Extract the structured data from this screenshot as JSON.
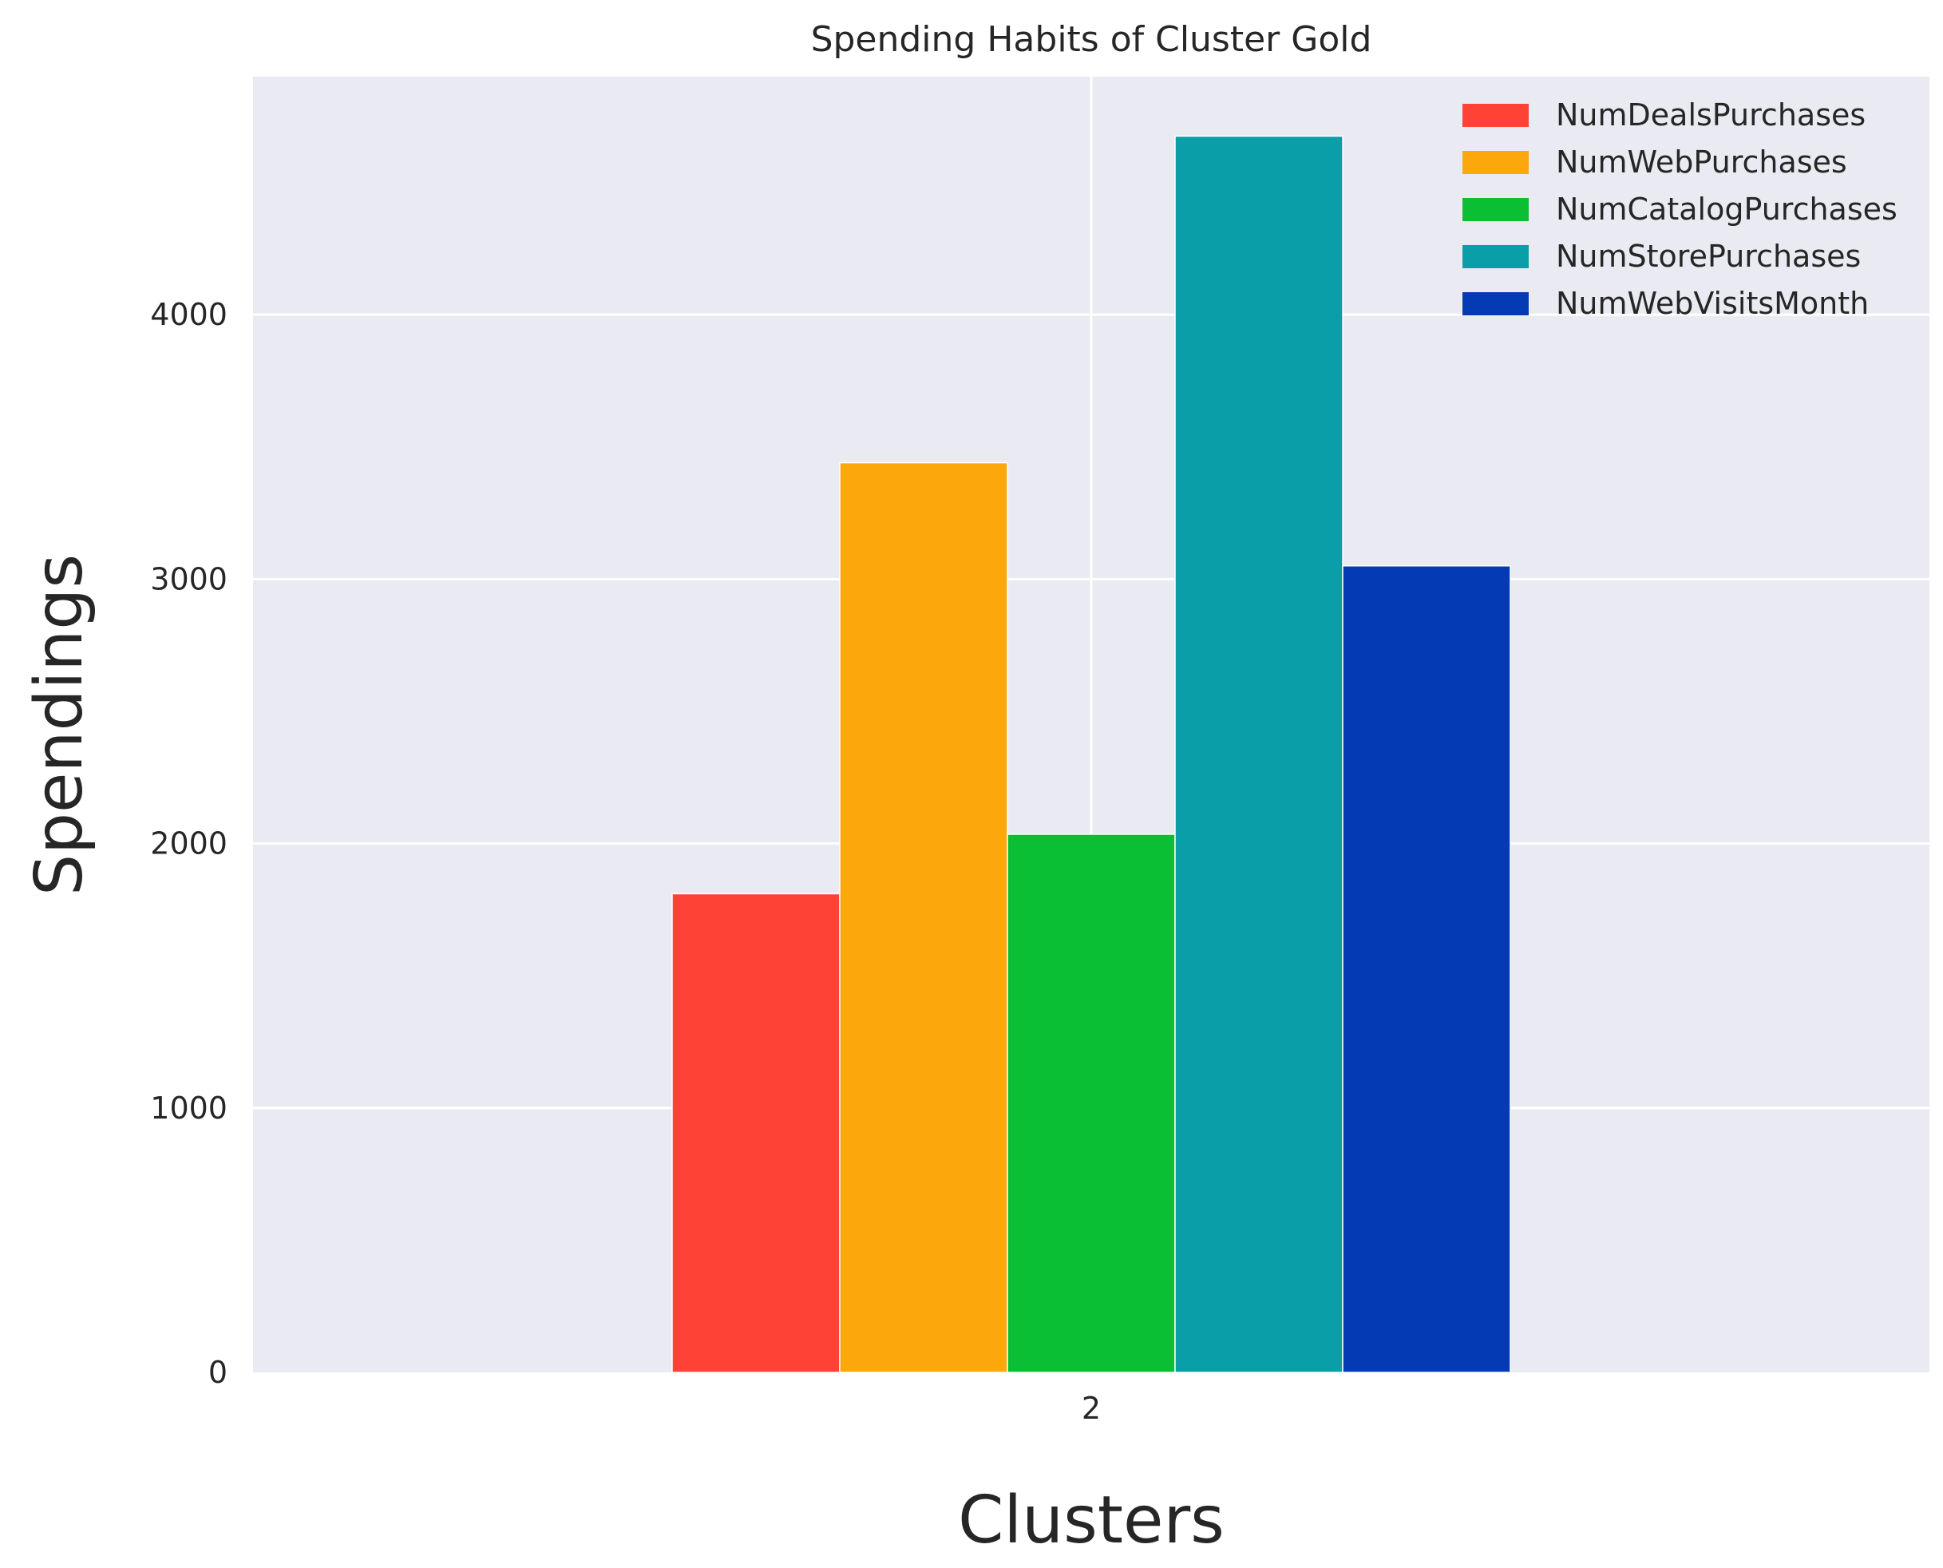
{
  "chart_data": {
    "type": "bar",
    "title": "Spending Habits of Cluster Gold",
    "xlabel": "Clusters",
    "ylabel": "Spendings",
    "categories": [
      "2"
    ],
    "ylim": [
      0,
      4900
    ],
    "yticks": [
      0,
      1000,
      2000,
      3000,
      4000
    ],
    "grid": true,
    "legend_position": "top-right",
    "series": [
      {
        "name": "NumDealsPurchases",
        "values": [
          1810
        ],
        "color": "#ff4136"
      },
      {
        "name": "NumWebPurchases",
        "values": [
          3440
        ],
        "color": "#fca70b"
      },
      {
        "name": "NumCatalogPurchases",
        "values": [
          2035
        ],
        "color": "#0abf33"
      },
      {
        "name": "NumStorePurchases",
        "values": [
          4675
        ],
        "color": "#0a9ea8"
      },
      {
        "name": "NumWebVisitsMonth",
        "values": [
          3050
        ],
        "color": "#053ab5"
      }
    ],
    "background_color": "#eaeaf2",
    "grid_color": "#ffffff"
  }
}
